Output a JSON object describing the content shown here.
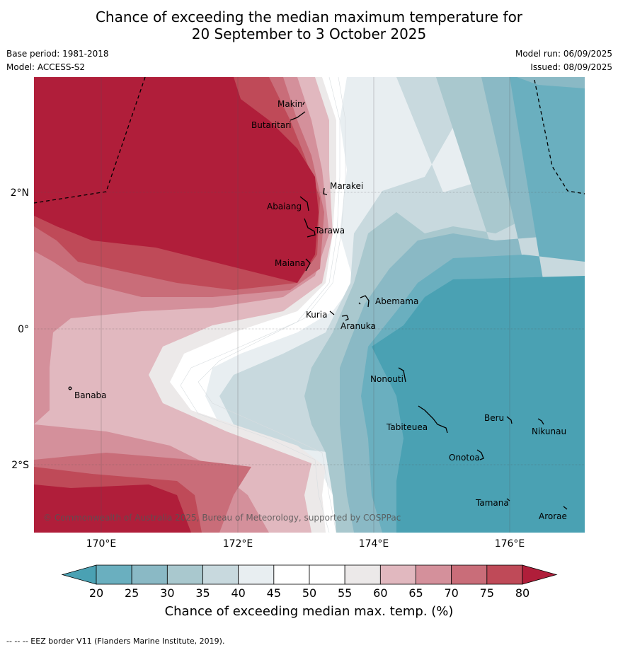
{
  "header": {
    "title_line1": "Chance of exceeding the median maximum temperature for",
    "title_line2": "20 September to 3 October 2025",
    "base_period": "Base period: 1981-2018",
    "model": "Model: ACCESS-S2",
    "model_run": "Model run: 06/09/2025",
    "issued": "Issued: 08/09/2025"
  },
  "map": {
    "lon_ticks": [
      "170°E",
      "172°E",
      "174°E",
      "176°E"
    ],
    "lat_ticks": [
      "2°N",
      "0°",
      "2°S"
    ],
    "places": [
      {
        "name": "Makin"
      },
      {
        "name": "Butaritari"
      },
      {
        "name": "Marakei"
      },
      {
        "name": "Abaiang"
      },
      {
        "name": "Tarawa"
      },
      {
        "name": "Maiana"
      },
      {
        "name": "Abemama"
      },
      {
        "name": "Kuria"
      },
      {
        "name": "Aranuka"
      },
      {
        "name": "Banaba"
      },
      {
        "name": "Nonouti"
      },
      {
        "name": "Beru"
      },
      {
        "name": "Tabiteuea"
      },
      {
        "name": "Nikunau"
      },
      {
        "name": "Onotoa"
      },
      {
        "name": "Tamana"
      },
      {
        "name": "Arorae"
      }
    ],
    "copyright": "© Commonwealth of Australia 2025, Bureau of Meteorology, supported by COSPPac"
  },
  "colorbar": {
    "ticks": [
      "20",
      "25",
      "30",
      "35",
      "40",
      "45",
      "50",
      "55",
      "60",
      "65",
      "70",
      "75",
      "80"
    ],
    "colors": [
      "#4aa1b3",
      "#6aafbf",
      "#8ab9c5",
      "#a9c8ce",
      "#c8d9de",
      "#e8eef1",
      "#ffffff",
      "#ffffff",
      "#ece9e9",
      "#e1b8bf",
      "#d4909b",
      "#c96d79",
      "#bf4a58",
      "#b01e3a"
    ],
    "label": "Chance of exceeding median max. temp. (%)"
  },
  "footer": {
    "legend": "--  --  -- EEZ border V11 (Flanders Marine Institute, 2019)."
  }
}
